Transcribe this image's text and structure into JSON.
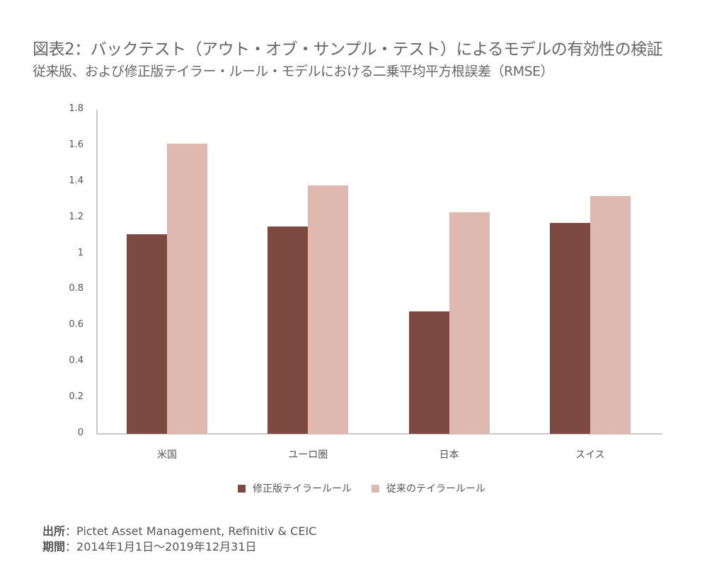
{
  "header": {
    "title": "図表2：バックテスト（アウト・オブ・サンプル・テスト）によるモデルの有効性の検証",
    "subtitle": "従来版、および修正版テイラー・ルール・モデルにおける二乗平均平方根誤差（RMSE）"
  },
  "colors": {
    "modified": "#7d4a42",
    "conventional": "#dfb9af"
  },
  "chart_data": {
    "type": "bar",
    "title": "図表2：バックテスト（アウト・オブ・サンプル・テスト）によるモデルの有効性の検証",
    "subtitle": "従来版、および修正版テイラー・ルール・モデルにおける二乗平均平方根誤差（RMSE）",
    "categories": [
      "米国",
      "ユーロ圏",
      "日本",
      "スイス"
    ],
    "series": [
      {
        "name": "修正版テイラールール",
        "color": "#7d4a42",
        "values": [
          1.11,
          1.15,
          0.68,
          1.17
        ]
      },
      {
        "name": "従来のテイラールール",
        "color": "#dfb9af",
        "values": [
          1.61,
          1.38,
          1.23,
          1.32
        ]
      }
    ],
    "xlabel": "",
    "ylabel": "",
    "ylim": [
      0,
      1.8
    ],
    "yticks": [
      "0",
      "0.2",
      "0.4",
      "0.6",
      "0.8",
      "1",
      "1.2",
      "1.4",
      "1.6",
      "1.8"
    ],
    "grid": false,
    "legend_position": "bottom"
  },
  "legend": {
    "items": [
      {
        "label": "修正版テイラールール"
      },
      {
        "label": "従来のテイラールール"
      }
    ]
  },
  "footer": {
    "source_label": "出所",
    "source_text": "：Pictet Asset Management, Refinitiv & CEIC",
    "period_label": "期間",
    "period_text": "：2014年1月1日～2019年12月31日"
  }
}
